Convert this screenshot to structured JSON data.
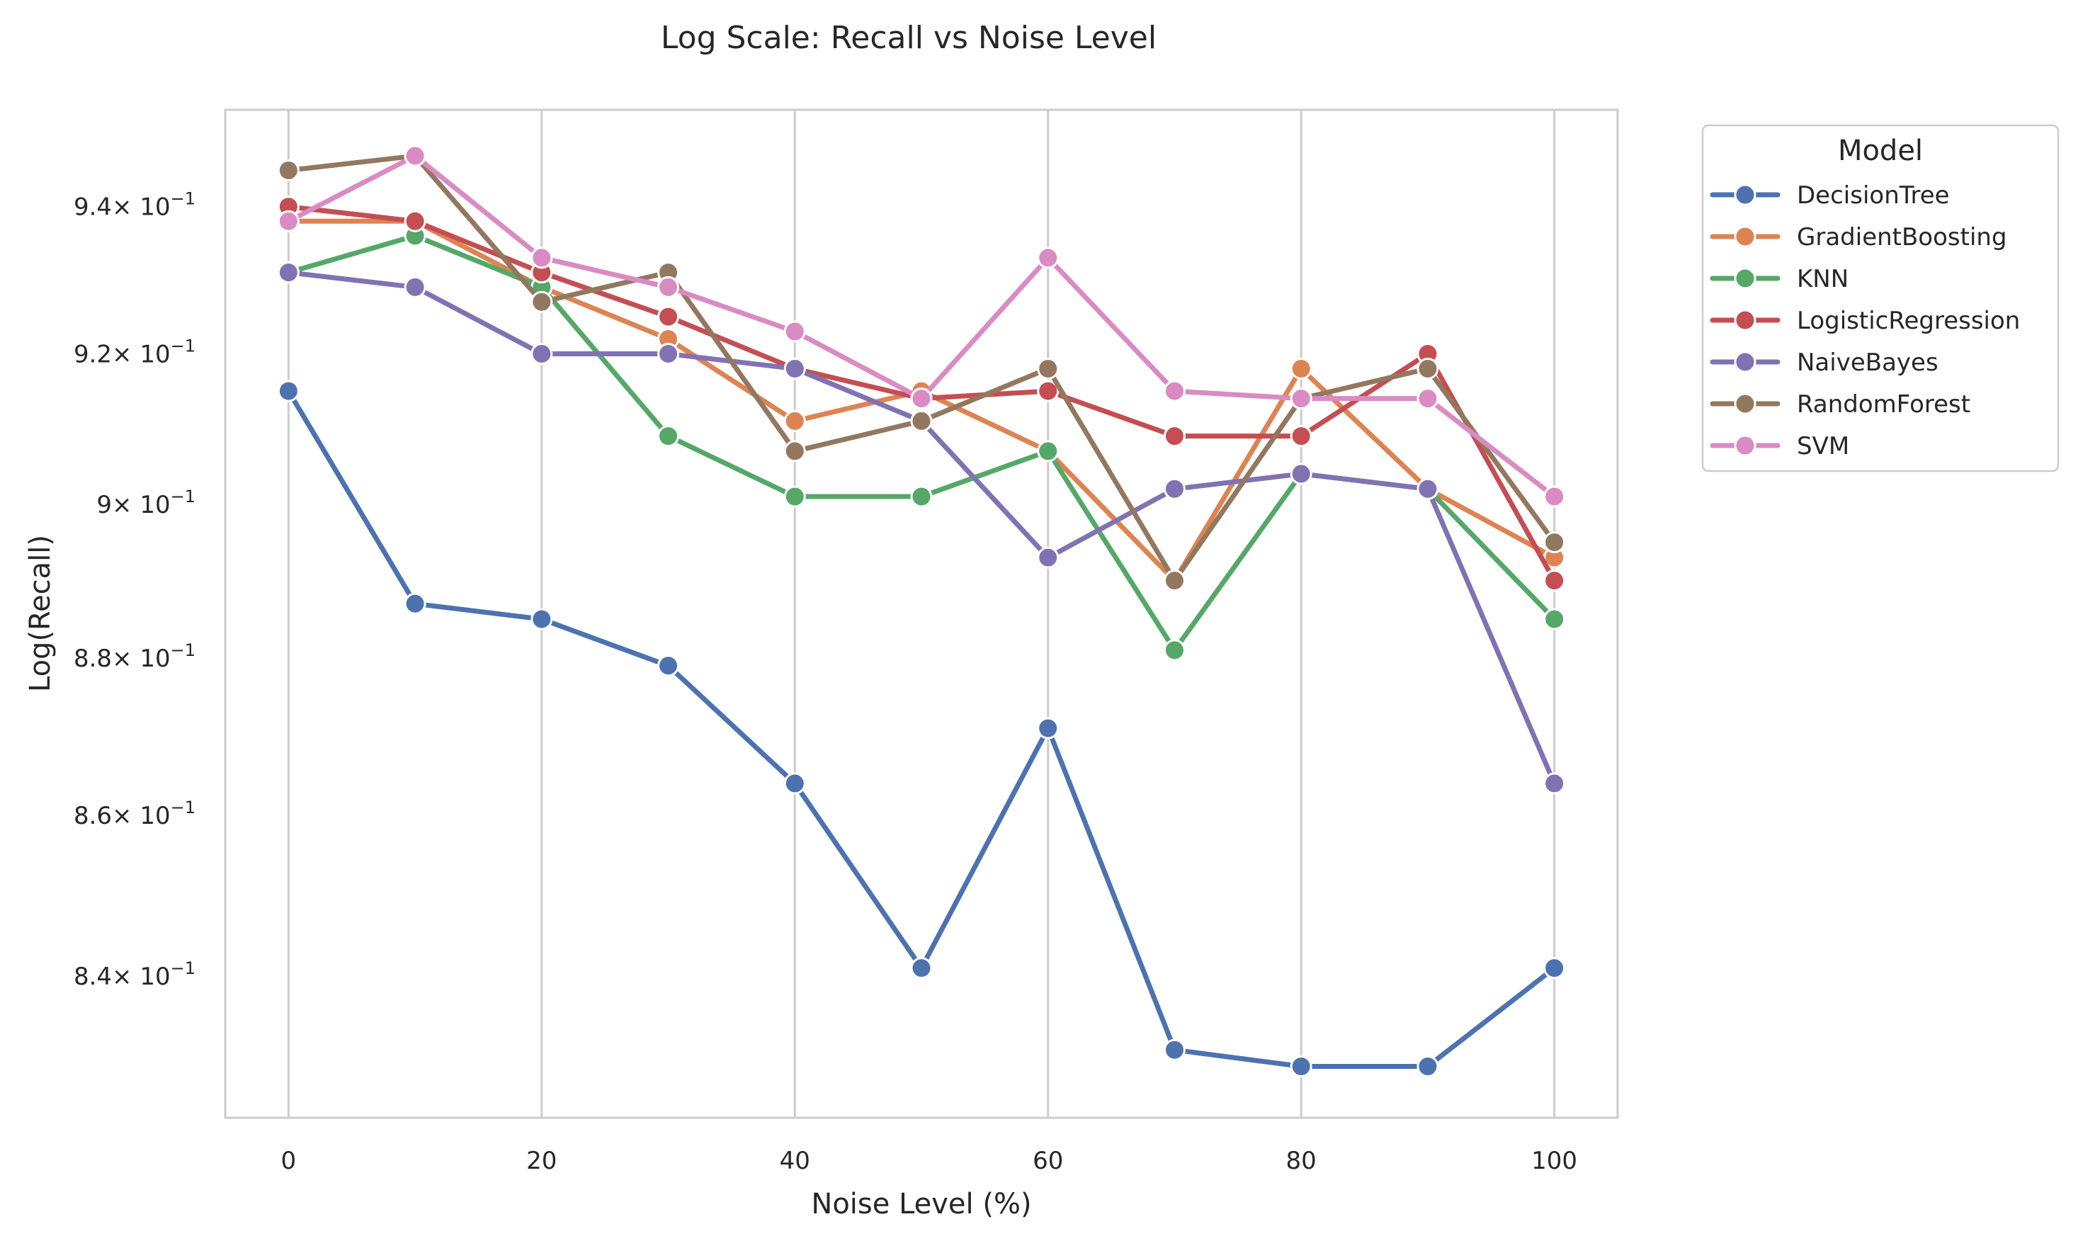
{
  "chart_data": {
    "type": "line",
    "title": "Log Scale: Recall vs Noise Level",
    "xlabel": "Noise Level (%)",
    "ylabel": "Log(Recall)",
    "y_scale": "log",
    "x": [
      0,
      10,
      20,
      30,
      40,
      50,
      60,
      70,
      80,
      90,
      100
    ],
    "xlim": [
      -5,
      105
    ],
    "ylim": [
      0.8228,
      0.9534
    ],
    "x_ticks": [
      0,
      20,
      40,
      60,
      80,
      100
    ],
    "x_tick_labels": [
      "0",
      "20",
      "40",
      "60",
      "80",
      "100"
    ],
    "y_ticks": [
      0.84,
      0.86,
      0.88,
      0.9,
      0.92,
      0.94
    ],
    "y_tick_mantissas": [
      "8.4",
      "8.6",
      "8.8",
      "9",
      "9.2",
      "9.4"
    ],
    "y_tick_base": "× 10",
    "y_tick_exponent": "−1",
    "grid": "vertical",
    "legend": {
      "title": "Model",
      "placement": "outside-right-top"
    },
    "series": [
      {
        "name": "DecisionTree",
        "color": "#4c72b0",
        "values": [
          0.915,
          0.887,
          0.885,
          0.879,
          0.864,
          0.841,
          0.871,
          0.831,
          0.829,
          0.829,
          0.841
        ]
      },
      {
        "name": "GradientBoosting",
        "color": "#dd8452",
        "values": [
          0.938,
          0.938,
          0.929,
          0.922,
          0.911,
          0.915,
          0.907,
          0.89,
          0.918,
          0.902,
          0.893
        ]
      },
      {
        "name": "KNN",
        "color": "#55a868",
        "values": [
          0.931,
          0.936,
          0.929,
          0.909,
          0.901,
          0.901,
          0.907,
          0.881,
          0.904,
          0.902,
          0.885
        ]
      },
      {
        "name": "LogisticRegression",
        "color": "#c44e52",
        "values": [
          0.94,
          0.938,
          0.931,
          0.925,
          0.918,
          0.914,
          0.915,
          0.909,
          0.909,
          0.92,
          0.89
        ]
      },
      {
        "name": "NaiveBayes",
        "color": "#8172b3",
        "values": [
          0.931,
          0.929,
          0.92,
          0.92,
          0.918,
          0.911,
          0.893,
          0.902,
          0.904,
          0.902,
          0.864
        ]
      },
      {
        "name": "RandomForest",
        "color": "#937860",
        "values": [
          0.945,
          0.947,
          0.927,
          0.931,
          0.907,
          0.911,
          0.918,
          0.89,
          0.914,
          0.918,
          0.895
        ]
      },
      {
        "name": "SVM",
        "color": "#da8bc3",
        "values": [
          0.938,
          0.947,
          0.933,
          0.929,
          0.923,
          0.914,
          0.933,
          0.915,
          0.914,
          0.914,
          0.901
        ]
      }
    ]
  }
}
